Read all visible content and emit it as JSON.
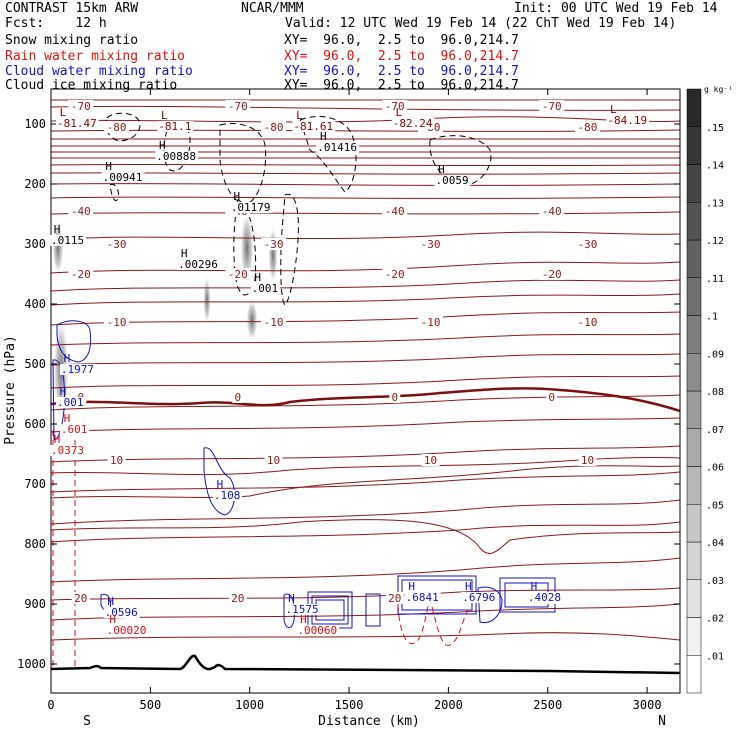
{
  "header": {
    "model": "CONTRAST 15km ARW",
    "org": "NCAR/MMM",
    "init": "Init: 00 UTC Wed 19 Feb 14",
    "fcst": "Fcst:    12 h",
    "valid": "Valid: 12 UTC Wed 19 Feb 14 (22 ChT Wed 19 Feb 14)",
    "fields": [
      {
        "name": "Snow mixing ratio",
        "xy": "XY=  96.0,  2.5 to  96.0,214.7",
        "color": "#000000"
      },
      {
        "name": "Rain water mixing ratio",
        "xy": "XY=  96.0,  2.5 to  96.0,214.7",
        "color": "#dd1111"
      },
      {
        "name": "Cloud water mixing ratio",
        "xy": "XY=  96.0,  2.5 to  96.0,214.7",
        "color": "#1111cc"
      },
      {
        "name": "Cloud ice mixing ratio",
        "xy": "XY=  96.0,  2.5 to  96.0,214.7",
        "color": "#000000"
      }
    ]
  },
  "chart_data": {
    "type": "contour cross-section",
    "xlabel": "Distance (km)",
    "ylabel": "Pressure (hPa)",
    "xlim": [
      0,
      3200
    ],
    "ylim": [
      1050,
      50
    ],
    "x_ticks": [
      0,
      500,
      1000,
      1500,
      2000,
      2500,
      3000
    ],
    "y_ticks": [
      100,
      200,
      300,
      400,
      500,
      600,
      700,
      800,
      900,
      1000
    ],
    "end_labels": {
      "left": "S",
      "right": "N"
    },
    "colorbar": {
      "unit": "g kg⁻¹",
      "levels": [
        ".01",
        ".02",
        ".03",
        ".04",
        ".05",
        ".06",
        ".07",
        ".08",
        ".09",
        ".1",
        ".11",
        ".12",
        ".13",
        ".14",
        ".15"
      ]
    },
    "temperature_isotherms_C": [
      {
        "label": "-70",
        "p": 70
      },
      {
        "label": "-80",
        "p": 105
      },
      {
        "label": "-40",
        "p": 245
      },
      {
        "label": "-30",
        "p": 300
      },
      {
        "label": "-20",
        "p": 350
      },
      {
        "label": "-10",
        "p": 430
      },
      {
        "label": "0",
        "p": 555
      },
      {
        "label": "10",
        "p": 660
      },
      {
        "label": "20",
        "p": 890
      }
    ],
    "extrema_labels": [
      {
        "type": "L",
        "value": "-81.47",
        "x": 30,
        "p": 105,
        "color": "#880000"
      },
      {
        "type": "L",
        "value": "-81.1",
        "x": 540,
        "p": 110,
        "color": "#880000"
      },
      {
        "type": "L",
        "value": "-81.61",
        "x": 1220,
        "p": 110,
        "color": "#880000"
      },
      {
        "type": "L",
        "value": "-82.24",
        "x": 1720,
        "p": 105,
        "color": "#880000"
      },
      {
        "type": "L",
        "value": "-84.19",
        "x": 2800,
        "p": 100,
        "color": "#880000"
      },
      {
        "type": "H",
        "value": ".00888",
        "x": 530,
        "p": 160,
        "color": "#000000"
      },
      {
        "type": "H",
        "value": ".01416",
        "x": 1340,
        "p": 145,
        "color": "#000000"
      },
      {
        "type": "H",
        "value": ".00941",
        "x": 260,
        "p": 195,
        "color": "#000000"
      },
      {
        "type": "H",
        "value": ".0059",
        "x": 1935,
        "p": 200,
        "color": "#000000"
      },
      {
        "type": "H",
        "value": ".01179",
        "x": 905,
        "p": 245,
        "color": "#000000"
      },
      {
        "type": "H",
        "value": ".00296",
        "x": 640,
        "p": 340,
        "color": "#000000"
      },
      {
        "type": "H",
        "value": ".001",
        "x": 1010,
        "p": 380,
        "color": "#000000"
      },
      {
        "type": "H",
        "value": ".1977",
        "x": 50,
        "p": 515,
        "color": "#1111cc"
      },
      {
        "type": "H",
        "value": ".001",
        "x": 30,
        "p": 570,
        "color": "#1111cc"
      },
      {
        "type": "H",
        "value": ".108",
        "x": 820,
        "p": 725,
        "color": "#1111cc"
      },
      {
        "type": "H",
        "value": ".1575",
        "x": 1180,
        "p": 915,
        "color": "#1111cc"
      },
      {
        "type": "H",
        "value": ".6841",
        "x": 1785,
        "p": 895,
        "color": "#1111cc"
      },
      {
        "type": "H",
        "value": ".6796",
        "x": 2070,
        "p": 895,
        "color": "#1111cc"
      },
      {
        "type": "H",
        "value": ".4028",
        "x": 2400,
        "p": 895,
        "color": "#1111cc"
      },
      {
        "type": "H",
        "value": ".0596",
        "x": 270,
        "p": 920,
        "color": "#1111cc"
      },
      {
        "type": "H",
        "value": ".00020",
        "x": 280,
        "p": 950,
        "color": "#dd1111"
      },
      {
        "type": "H",
        "value": ".00060",
        "x": 1240,
        "p": 950,
        "color": "#dd1111"
      },
      {
        "type": "H",
        "value": ".0115",
        "x": 0,
        "p": 300,
        "color": "#000000"
      },
      {
        "type": "H",
        "value": ".601",
        "x": 50,
        "p": 615,
        "color": "#dd1111"
      },
      {
        "type": "H",
        "value": ".0373",
        "x": 0,
        "p": 650,
        "color": "#dd1111"
      }
    ]
  }
}
